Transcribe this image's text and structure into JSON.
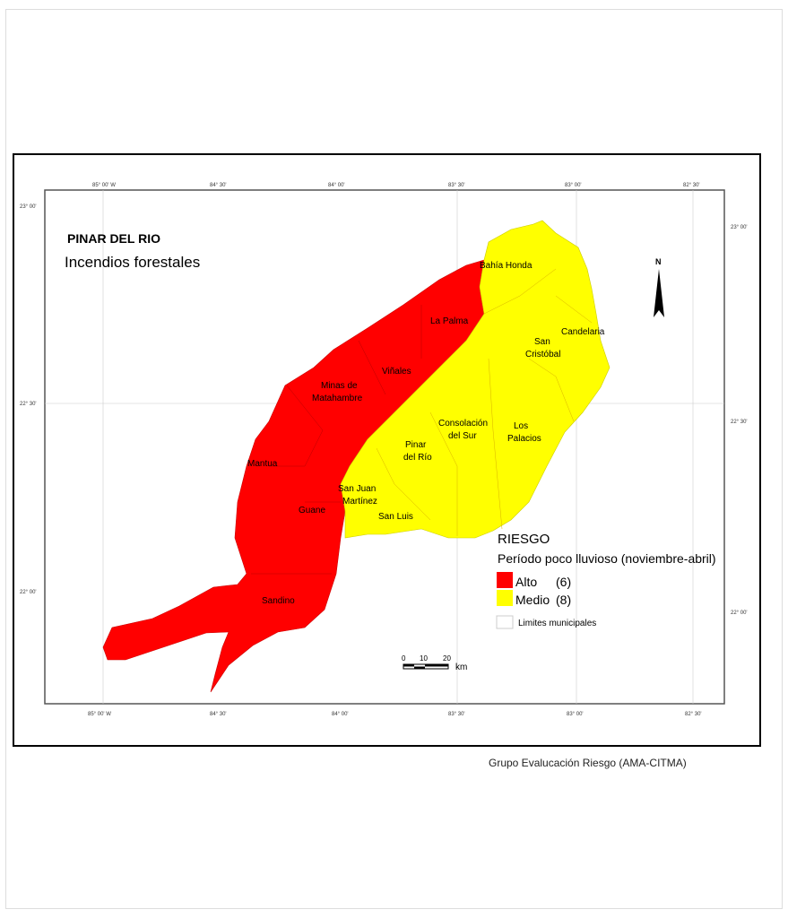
{
  "map": {
    "title": "PINAR DEL RIO",
    "subtitle": "Incendios forestales",
    "colors": {
      "alto": "#ff0000",
      "medio": "#ffff00",
      "frame": "#000000"
    },
    "top_longitudes": [
      "85° 00' W",
      "84° 30'",
      "84° 00'",
      "83° 30'",
      "83° 00'",
      "82° 30'"
    ],
    "bottom_longitudes": [
      "85° 00' W",
      "84° 30'",
      "84° 00'",
      "83° 30'",
      "83° 00'",
      "82° 30'"
    ],
    "left_latitudes": [
      "23° 00'",
      "22° 30'",
      "22° 00'"
    ],
    "right_latitudes": [
      "23° 00'",
      "22° 30'",
      "22° 00'"
    ],
    "north_label": "N",
    "municipalities": {
      "bahia_honda": "Bahía Honda",
      "la_palma": "La Palma",
      "candelaria": "Candelaria",
      "san_cristobal_1": "San",
      "san_cristobal_2": "Cristóbal",
      "vinales": "Viñales",
      "minas_1": "Minas de",
      "minas_2": "Matahambre",
      "consolacion_1": "Consolación",
      "consolacion_2": "del Sur",
      "los_palacios_1": "Los",
      "los_palacios_2": "Palacios",
      "pinar_1": "Pinar",
      "pinar_2": "del Río",
      "mantua": "Mantua",
      "san_juan_1": "San Juan",
      "san_juan_2": "Martínez",
      "guane": "Guane",
      "san_luis": "San Luis",
      "sandino": "Sandino"
    },
    "legend": {
      "title": "RIESGO",
      "period": "Período poco lluvioso (noviembre-abril)",
      "alto": "Alto",
      "alto_count": "(6)",
      "medio": "Medio",
      "medio_count": "(8)",
      "limits": "Limites municipales"
    },
    "scale": {
      "ticks": [
        "0",
        "10",
        "20"
      ],
      "unit": "km"
    },
    "credit": "Grupo Evalucación Riesgo (AMA-CITMA)"
  }
}
